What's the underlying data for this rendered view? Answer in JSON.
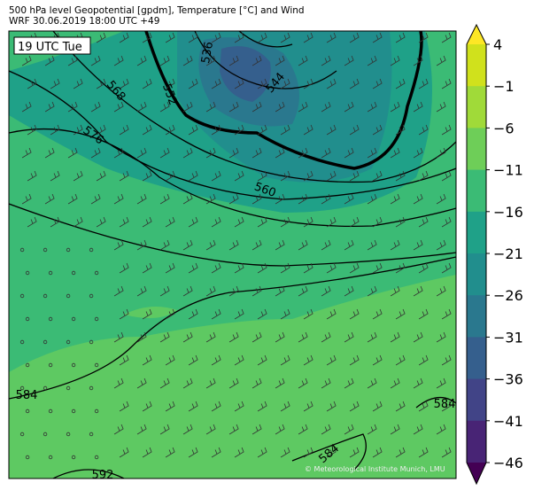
{
  "header": {
    "title": "500 hPa level Geopotential [gpdm], Temperature [°C] and Wind",
    "subtitle": "WRF 30.06.2019 18:00 UTC +49"
  },
  "map": {
    "time_label": "19 UTC Tue",
    "contour_labels": [
      "536",
      "552",
      "544",
      "568",
      "576",
      "560",
      "584",
      "584",
      "584",
      "592"
    ],
    "credit": "© Meteorological Institute Munich, LMU"
  },
  "colorbar": {
    "ticks": [
      "4",
      "−1",
      "−6",
      "−11",
      "−16",
      "−21",
      "−26",
      "−31",
      "−36",
      "−41",
      "−46"
    ],
    "colors": [
      "#fde725",
      "#d0e11c",
      "#a0da39",
      "#6ece58",
      "#3bbb75",
      "#1fa188",
      "#218e8d",
      "#2a788e",
      "#355f8d",
      "#414487",
      "#482475",
      "#440154"
    ]
  }
}
